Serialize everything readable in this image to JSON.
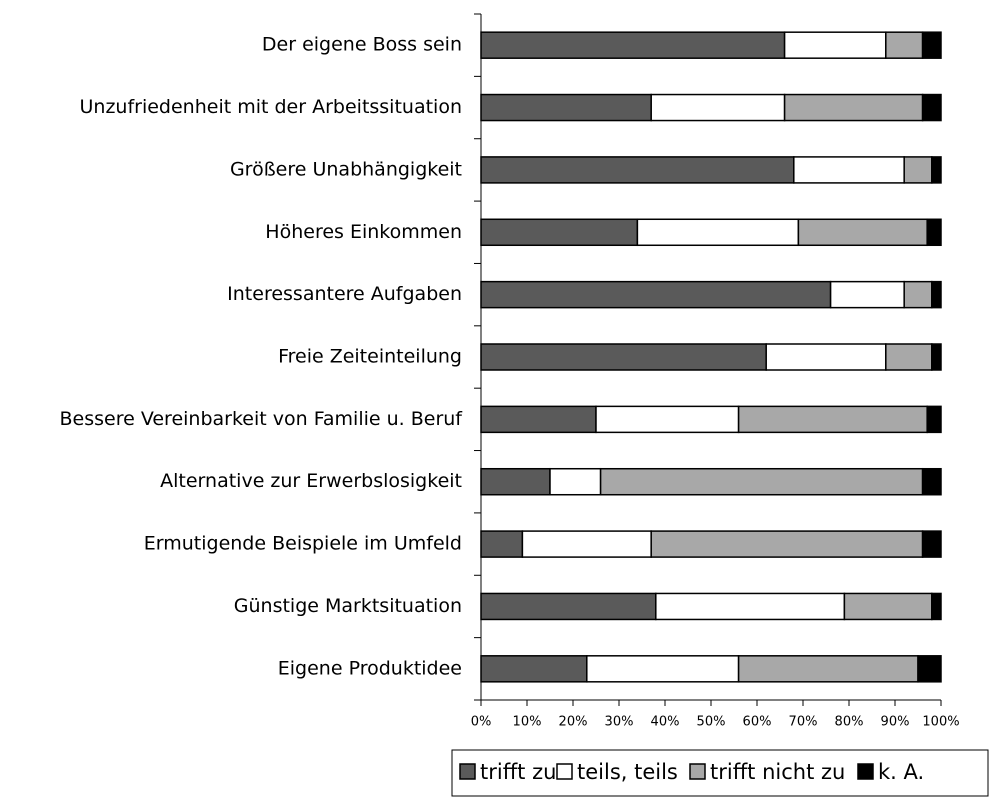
{
  "chart_data": {
    "type": "stacked_bar_horizontal",
    "categories": [
      "Der eigene Boss sein",
      "Unzufriedenheit mit der Arbeitssituation",
      "Größere Unabhängigkeit",
      "Höheres Einkommen",
      "Interessantere Aufgaben",
      "Freie Zeiteinteilung",
      "Bessere Vereinbarkeit von Familie u. Beruf",
      "Alternative zur Erwerbslosigkeit",
      "Ermutigende Beispiele im Umfeld",
      "Günstige Marktsituation",
      "Eigene Produktidee"
    ],
    "series": [
      {
        "name": "trifft zu",
        "color": "#5a5a5a",
        "values": [
          66,
          37,
          68,
          34,
          76,
          62,
          25,
          15,
          9,
          38,
          23
        ]
      },
      {
        "name": "teils, teils",
        "color": "#ffffff",
        "values": [
          22,
          29,
          24,
          35,
          16,
          26,
          31,
          11,
          28,
          41,
          33
        ]
      },
      {
        "name": "trifft nicht zu",
        "color": "#a8a8a8",
        "values": [
          8,
          30,
          6,
          28,
          6,
          10,
          41,
          70,
          59,
          19,
          39
        ]
      },
      {
        "name": "k. A.",
        "color": "#000000",
        "values": [
          4,
          4,
          2,
          3,
          2,
          2,
          3,
          4,
          4,
          2,
          5
        ]
      }
    ],
    "xlim": [
      0,
      100
    ],
    "xticks": [
      {
        "value": 0,
        "label": "0%"
      },
      {
        "value": 10,
        "label": "10%"
      },
      {
        "value": 20,
        "label": "20%"
      },
      {
        "value": 30,
        "label": "30%"
      },
      {
        "value": 40,
        "label": "40%"
      },
      {
        "value": 50,
        "label": "50%"
      },
      {
        "value": 60,
        "label": "60%"
      },
      {
        "value": 70,
        "label": "70%"
      },
      {
        "value": 80,
        "label": "80%"
      },
      {
        "value": 90,
        "label": "90%"
      },
      {
        "value": 100,
        "label": "100%"
      }
    ],
    "legend": "bottom-right"
  }
}
